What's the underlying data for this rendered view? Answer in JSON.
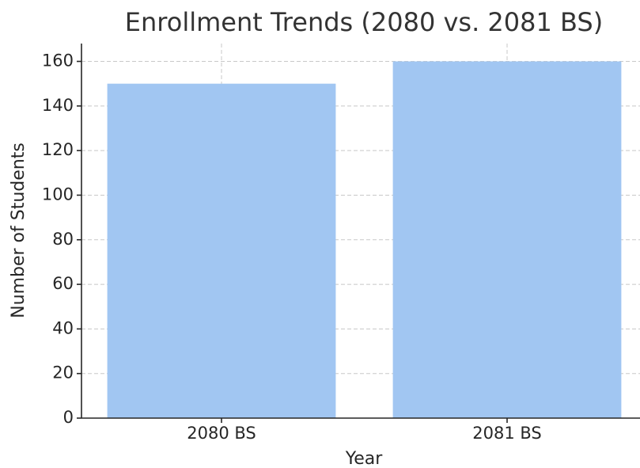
{
  "chart_data": {
    "type": "bar",
    "title": "Enrollment Trends (2080 vs. 2081 BS)",
    "x_label": "Year",
    "y_label": "Number of Students",
    "categories": [
      "2080 BS",
      "2081 BS"
    ],
    "values": [
      150,
      160
    ],
    "color": "#a1c6f2",
    "ylim": [
      0,
      168
    ],
    "yticks": [
      0,
      20,
      40,
      60,
      80,
      100,
      120,
      140,
      160
    ],
    "grid": true
  }
}
